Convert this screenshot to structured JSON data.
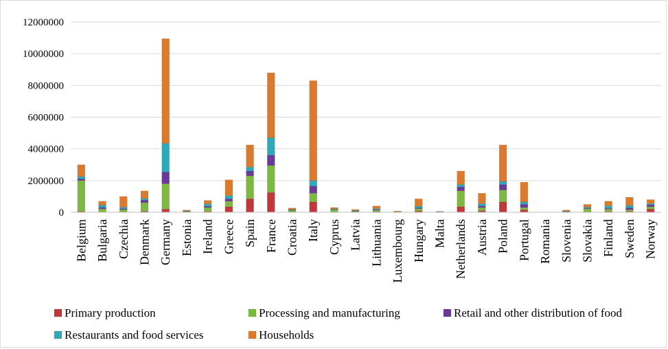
{
  "chart_data": {
    "type": "bar",
    "stacked": true,
    "title": "",
    "xlabel": "",
    "ylabel": "",
    "ylim": [
      0,
      12000000
    ],
    "yticks": [
      "0",
      "2000000",
      "4000000",
      "6000000",
      "8000000",
      "10000000",
      "12000000"
    ],
    "grid": true,
    "legend_position": "bottom",
    "categories": [
      "Belgium",
      "Bulgaria",
      "Czechia",
      "Denmark",
      "Germany",
      "Estonia",
      "Ireland",
      "Greece",
      "Spain",
      "France",
      "Croatia",
      "Italy",
      "Cyprus",
      "Latvia",
      "Lithuania",
      "Luxembourg",
      "Hungary",
      "Malta",
      "Netherlands",
      "Austria",
      "Poland",
      "Portugal",
      "Romania",
      "Slovenia",
      "Slovakia",
      "Finland",
      "Sweden",
      "Norway"
    ],
    "series": [
      {
        "name": "Primary production",
        "color": "#c0383c",
        "values": [
          50000,
          20000,
          20000,
          60000,
          200000,
          10000,
          50000,
          350000,
          850000,
          1250000,
          20000,
          650000,
          20000,
          15000,
          40000,
          3000,
          80000,
          2000,
          350000,
          100000,
          650000,
          150000,
          0,
          10000,
          30000,
          50000,
          60000,
          200000
        ]
      },
      {
        "name": "Processing and manufacturing",
        "color": "#7db842",
        "values": [
          1950000,
          200000,
          150000,
          550000,
          1600000,
          50000,
          250000,
          350000,
          1450000,
          1700000,
          100000,
          550000,
          150000,
          50000,
          100000,
          20000,
          150000,
          20000,
          1000000,
          200000,
          750000,
          150000,
          0,
          40000,
          200000,
          150000,
          100000,
          150000
        ]
      },
      {
        "name": "Retail and other distribution of food",
        "color": "#6a3a99",
        "values": [
          100000,
          80000,
          50000,
          150000,
          750000,
          10000,
          80000,
          150000,
          300000,
          650000,
          30000,
          450000,
          20000,
          20000,
          40000,
          5000,
          50000,
          5000,
          250000,
          100000,
          350000,
          200000,
          0,
          10000,
          40000,
          50000,
          120000,
          120000
        ]
      },
      {
        "name": "Restaurants and food services",
        "color": "#2fa8b8",
        "values": [
          150000,
          150000,
          100000,
          100000,
          1800000,
          20000,
          150000,
          200000,
          250000,
          1100000,
          30000,
          350000,
          30000,
          30000,
          50000,
          10000,
          100000,
          10000,
          150000,
          150000,
          200000,
          150000,
          0,
          20000,
          50000,
          150000,
          150000,
          80000
        ]
      },
      {
        "name": "Households",
        "color": "#d97a2e",
        "values": [
          750000,
          250000,
          680000,
          490000,
          6600000,
          50000,
          220000,
          1000000,
          1400000,
          4100000,
          90000,
          6300000,
          80000,
          65000,
          170000,
          42000,
          470000,
          23000,
          850000,
          650000,
          2300000,
          1250000,
          0,
          60000,
          180000,
          300000,
          520000,
          250000
        ]
      }
    ]
  }
}
